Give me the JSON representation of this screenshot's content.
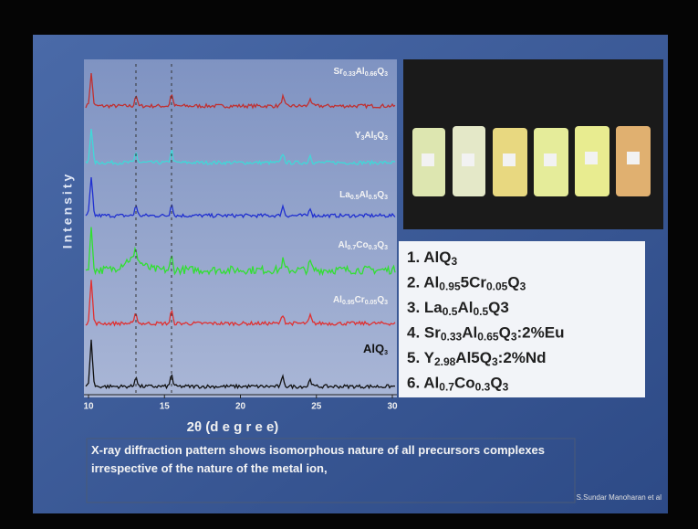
{
  "slide": {
    "plot": {
      "y_label": "Intensity",
      "x_label": "2θ (d e g r e e)",
      "x_ticks": [
        "10",
        "15",
        "20",
        "25",
        "30"
      ],
      "trace_labels": [
        [
          "Sr",
          "0.33",
          "Al",
          "0.66",
          "Q",
          "3"
        ],
        [
          "Y",
          "3",
          "Al",
          "5",
          "Q",
          "3"
        ],
        [
          "La",
          "0.5",
          "Al",
          "0.5",
          "Q",
          "3"
        ],
        [
          "Al",
          "0.7",
          "Co",
          "0.3",
          "Q",
          "3"
        ],
        [
          "Al",
          "0.95",
          "Cr",
          "0.05",
          "Q",
          "3"
        ],
        [
          "AlQ",
          "3"
        ]
      ]
    },
    "list": [
      [
        "1. AlQ",
        "3"
      ],
      [
        "2. Al",
        "0.95",
        "5Cr",
        "0.05",
        "Q",
        "3"
      ],
      [
        "3. La",
        "0.5",
        "Al",
        "0.5",
        "Q3"
      ],
      [
        "4. Sr",
        "0.33",
        "Al",
        "0.65",
        "Q",
        "3",
        ":2%Eu"
      ],
      [
        "5. Y",
        "2.98",
        "Al5Q",
        "3",
        ":2%Nd"
      ],
      [
        "6. Al",
        "0.7",
        "Co",
        "0.3",
        "Q",
        "3"
      ]
    ],
    "caption": "X-ray diffraction pattern shows isomorphous nature of all precursors complexes irrespective of the nature of the metal ion,",
    "credit": "S.Sundar Manoharan et al"
  }
}
